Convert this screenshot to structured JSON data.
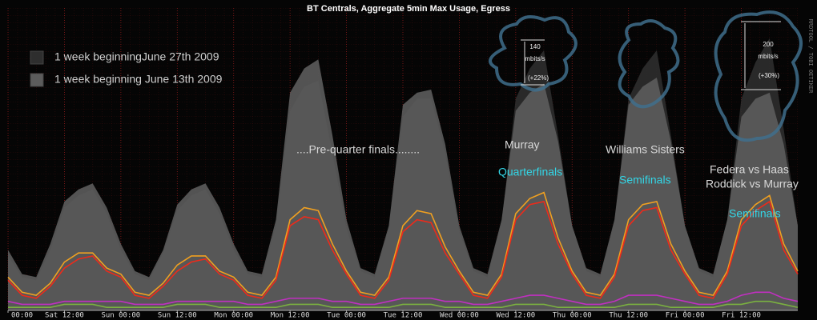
{
  "chart_data": {
    "type": "line",
    "title": "BT Centrals, Aggregate 5min Max Usage, Egress",
    "side_label": "RRDTOOL / TOBI OETIKER",
    "x": [
      0,
      3,
      6,
      9,
      12,
      15,
      18,
      21,
      24,
      27,
      30,
      33,
      36,
      39,
      42,
      45,
      48,
      51,
      54,
      57,
      60,
      63,
      66,
      69,
      72,
      75,
      78,
      81,
      84,
      87,
      90,
      93,
      96,
      99,
      102,
      105,
      108,
      111,
      114,
      117,
      120,
      123,
      126,
      129,
      132,
      135,
      138,
      141,
      144,
      147,
      150,
      153,
      156,
      159,
      162,
      165,
      168
    ],
    "xlim": [
      0,
      168
    ],
    "ylim": [
      0,
      100
    ],
    "xticks": [
      {
        "value": 0,
        "label": "00:00"
      },
      {
        "value": 12,
        "label": "Sat 12:00"
      },
      {
        "value": 24,
        "label": "Sun 00:00"
      },
      {
        "value": 36,
        "label": "Sun 12:00"
      },
      {
        "value": 48,
        "label": "Mon 00:00"
      },
      {
        "value": 60,
        "label": "Mon 12:00"
      },
      {
        "value": 72,
        "label": "Tue 00:00"
      },
      {
        "value": 84,
        "label": "Tue 12:00"
      },
      {
        "value": 96,
        "label": "Wed 00:00"
      },
      {
        "value": 108,
        "label": "Wed 12:00"
      },
      {
        "value": 120,
        "label": "Thu 00:00"
      },
      {
        "value": 132,
        "label": "Thu 12:00"
      },
      {
        "value": 144,
        "label": "Fri 00:00"
      },
      {
        "value": 156,
        "label": "Fri 12:00"
      }
    ],
    "grid": true,
    "legend": "top-left",
    "series": [
      {
        "name": "1 week beginningJune 27th 2009",
        "color": "#2e2e2e",
        "style": "area",
        "values": [
          18,
          11,
          10,
          20,
          34,
          38,
          40,
          32,
          20,
          12,
          10,
          19,
          33,
          38,
          40,
          32,
          20,
          12,
          11,
          28,
          66,
          74,
          76,
          52,
          27,
          13,
          11,
          27,
          64,
          70,
          70,
          52,
          26,
          13,
          11,
          29,
          70,
          80,
          86,
          58,
          28,
          13,
          11,
          29,
          70,
          80,
          86,
          58,
          28,
          13,
          11,
          30,
          70,
          82,
          90,
          60,
          28
        ]
      },
      {
        "name": "1 week beginning June 13th 2009",
        "color": "#5c5c5c",
        "style": "area",
        "values": [
          20,
          12,
          11,
          22,
          36,
          40,
          42,
          34,
          22,
          13,
          11,
          20,
          35,
          40,
          42,
          34,
          22,
          13,
          12,
          30,
          72,
          80,
          83,
          58,
          30,
          14,
          12,
          28,
          68,
          72,
          73,
          55,
          28,
          14,
          12,
          30,
          66,
          72,
          75,
          56,
          28,
          14,
          12,
          30,
          68,
          74,
          77,
          56,
          28,
          14,
          12,
          30,
          64,
          70,
          72,
          55,
          28
        ]
      },
      {
        "color": "#f0a020",
        "style": "line",
        "values": [
          11,
          6,
          5,
          9,
          16,
          19,
          19,
          14,
          12,
          6,
          5,
          9,
          15,
          18,
          18,
          13,
          11,
          6,
          5,
          11,
          30,
          34,
          33,
          22,
          13,
          6,
          5,
          11,
          28,
          33,
          32,
          21,
          13,
          6,
          5,
          12,
          32,
          37,
          39,
          24,
          13,
          6,
          5,
          12,
          30,
          35,
          36,
          22,
          13,
          6,
          5,
          13,
          30,
          35,
          38,
          22,
          13
        ]
      },
      {
        "color": "#ee2a1a",
        "style": "line",
        "values": [
          10,
          5,
          4,
          8,
          14,
          17,
          18,
          13,
          11,
          5,
          4,
          8,
          13,
          16,
          17,
          12,
          10,
          5,
          4,
          10,
          28,
          31,
          30,
          20,
          12,
          5,
          4,
          10,
          26,
          30,
          29,
          19,
          12,
          5,
          4,
          11,
          30,
          35,
          36,
          22,
          12,
          5,
          4,
          11,
          28,
          33,
          34,
          20,
          12,
          5,
          4,
          12,
          28,
          33,
          36,
          20,
          12
        ]
      },
      {
        "color": "#c030c0",
        "style": "line",
        "values": [
          3,
          2,
          2,
          2,
          3,
          3,
          3,
          3,
          3,
          2,
          2,
          2,
          3,
          3,
          3,
          3,
          3,
          2,
          2,
          3,
          4,
          4,
          4,
          3,
          3,
          2,
          2,
          3,
          4,
          4,
          4,
          3,
          3,
          2,
          2,
          3,
          4,
          5,
          5,
          4,
          3,
          2,
          2,
          3,
          5,
          5,
          5,
          4,
          3,
          2,
          2,
          3,
          5,
          6,
          6,
          4,
          3
        ]
      },
      {
        "color": "#7ab040",
        "style": "line",
        "values": [
          1,
          1,
          1,
          1,
          2,
          2,
          2,
          1,
          1,
          1,
          1,
          1,
          2,
          2,
          2,
          1,
          1,
          1,
          1,
          1,
          2,
          2,
          2,
          1,
          1,
          1,
          1,
          1,
          2,
          2,
          2,
          1,
          1,
          1,
          1,
          1,
          2,
          2,
          2,
          1,
          1,
          1,
          1,
          1,
          2,
          2,
          2,
          1,
          1,
          1,
          1,
          2,
          2,
          3,
          3,
          2,
          1
        ]
      }
    ],
    "annotations": [
      "....Pre-quarter finals........",
      "Murray",
      "Quarterfinals",
      "Williams Sisters",
      "Semifinals",
      "Federa vs Haas",
      "Roddick vs Murray",
      "Semifinals"
    ],
    "callouts": [
      {
        "value": "140",
        "unit": "mbits/s",
        "change": "(+22%)"
      },
      {
        "value": "200",
        "unit": "mbits/s",
        "change": "(+30%)"
      }
    ]
  }
}
